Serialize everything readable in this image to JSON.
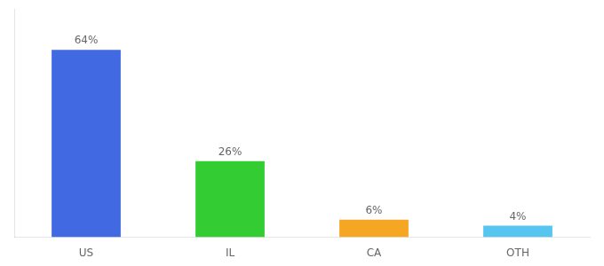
{
  "chart_data": {
    "type": "bar",
    "categories": [
      "US",
      "IL",
      "CA",
      "OTH"
    ],
    "values": [
      64,
      26,
      6,
      4
    ],
    "value_labels": [
      "64%",
      "26%",
      "6%",
      "4%"
    ],
    "data_labels": true,
    "colors": [
      "#4169e1",
      "#33cc33",
      "#f5a623",
      "#56c5f0"
    ],
    "ylim": [
      0,
      78
    ],
    "yticks": [],
    "grid": false,
    "tick_labels": "x"
  }
}
